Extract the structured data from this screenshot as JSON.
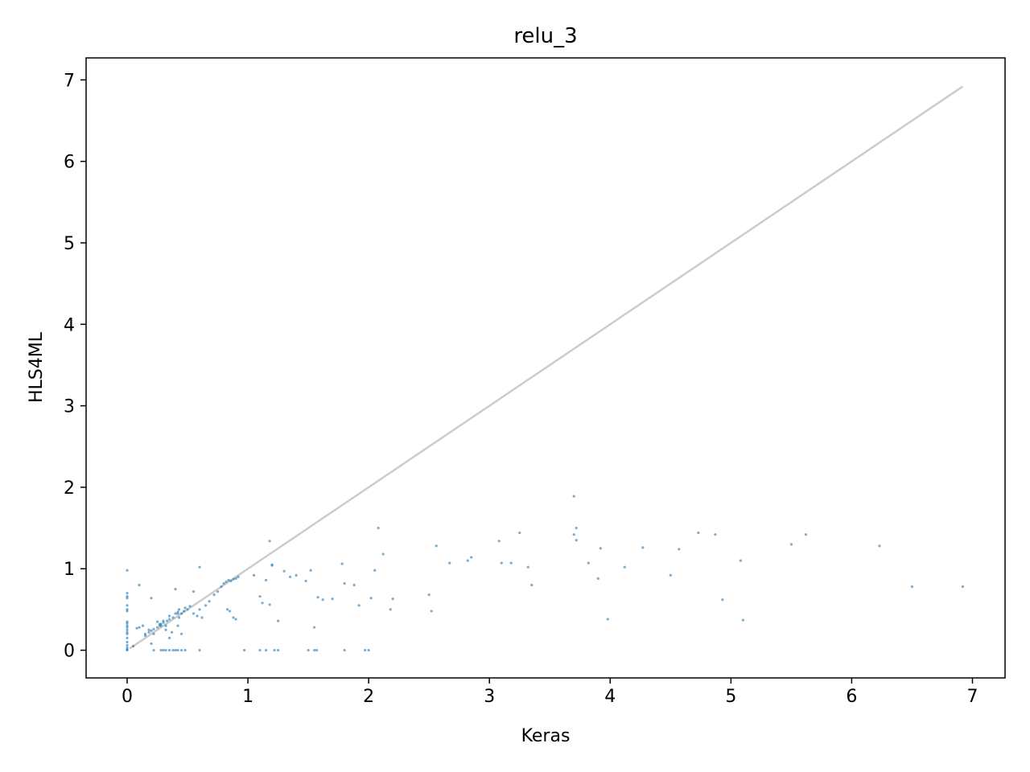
{
  "chart_data": {
    "type": "scatter",
    "title": "relu_3",
    "xlabel": "Keras",
    "ylabel": "HLS4ML",
    "xlim": [
      -0.34,
      7.27
    ],
    "ylim": [
      -0.34,
      7.27
    ],
    "xticks": [
      0,
      1,
      2,
      3,
      4,
      5,
      6,
      7
    ],
    "yticks": [
      0,
      1,
      2,
      3,
      4,
      5,
      6,
      7
    ],
    "grid": false,
    "colors": {
      "points": "#1f77b4",
      "reference_line": "#cccccc"
    },
    "reference_line": {
      "x": [
        0.02,
        6.92
      ],
      "y": [
        0.02,
        6.92
      ]
    },
    "series": [
      {
        "x": [
          0,
          0,
          0,
          0,
          0,
          0,
          0,
          0,
          0,
          0,
          0,
          0,
          0,
          0,
          0,
          0,
          0,
          0,
          0,
          0,
          0.05,
          0.08,
          0.1,
          0.13,
          0.15,
          0.18,
          0.2,
          0.22,
          0.25,
          0.27,
          0.28,
          0.3,
          0.32,
          0.33,
          0.35,
          0.38,
          0.4,
          0.42,
          0.43,
          0.45,
          0.47,
          0.48,
          0.5,
          0.52,
          0.55,
          0.58,
          0.6,
          0.62,
          0.65,
          0.68,
          0.72,
          0.75,
          0.78,
          0.8,
          0.82,
          0.84,
          0.86,
          0.88,
          0.9,
          0.92,
          0.1,
          0.15,
          0.18,
          0.2,
          0.22,
          0.25,
          0.27,
          0.28,
          0.3,
          0.32,
          0.35,
          0.37,
          0.4,
          0.42,
          0.43,
          0.45,
          0.6,
          0.2,
          0.35,
          0.42,
          0.55,
          0.83,
          0.85,
          0.88,
          0.9,
          1.05,
          1.1,
          1.12,
          1.15,
          1.18,
          1.2,
          1.25,
          1.3,
          1.35,
          1.4,
          1.48,
          1.52,
          1.55,
          1.58,
          1.62,
          1.7,
          1.78,
          1.8,
          1.88,
          1.92,
          2.02,
          2.05,
          2.08,
          2.12,
          2.18,
          2.2,
          2.5,
          2.52,
          2.56,
          2.67,
          2.82,
          2.85,
          3.08,
          3.1,
          3.18,
          3.25,
          3.32,
          3.35,
          3.7,
          3.7,
          3.72,
          3.72,
          3.82,
          3.9,
          3.92,
          3.98,
          4.12,
          4.27,
          4.5,
          4.57,
          4.73,
          4.87,
          4.93,
          5.08,
          5.1,
          5.5,
          5.62,
          6.23,
          6.5,
          6.92,
          0.22,
          0.28,
          0.38,
          0.42,
          0.48,
          0.6,
          0.97,
          1.1,
          1.15,
          1.22,
          1.25,
          1.55,
          1.57,
          1.8,
          1.97,
          2.0,
          0.3,
          0.32,
          0.35,
          0.4,
          0.45,
          1.18,
          1.2,
          1.5
        ],
        "y": [
          0.98,
          0.7,
          0.66,
          0.64,
          0.55,
          0.5,
          0.48,
          0.35,
          0.33,
          0.3,
          0.28,
          0.25,
          0.22,
          0.2,
          0.15,
          0.1,
          0.06,
          0.03,
          0.01,
          0.0,
          0.05,
          0.27,
          0.28,
          0.3,
          0.2,
          0.22,
          0.24,
          0.26,
          0.28,
          0.3,
          0.32,
          0.34,
          0.3,
          0.36,
          0.38,
          0.4,
          0.45,
          0.47,
          0.5,
          0.45,
          0.48,
          0.52,
          0.5,
          0.54,
          0.45,
          0.42,
          0.5,
          0.4,
          0.55,
          0.6,
          0.68,
          0.72,
          0.78,
          0.82,
          0.84,
          0.86,
          0.85,
          0.87,
          0.88,
          0.9,
          0.8,
          0.18,
          0.25,
          0.64,
          0.2,
          0.35,
          0.32,
          0.3,
          0.36,
          0.25,
          0.42,
          0.22,
          0.75,
          0.45,
          0.4,
          0.2,
          1.02,
          0.08,
          0.15,
          0.3,
          0.72,
          0.5,
          0.48,
          0.4,
          0.38,
          0.92,
          0.66,
          0.58,
          0.86,
          0.56,
          1.05,
          0.36,
          0.97,
          0.9,
          0.92,
          0.85,
          0.98,
          0.28,
          0.65,
          0.62,
          0.63,
          1.06,
          0.82,
          0.8,
          0.55,
          0.64,
          0.98,
          1.5,
          1.18,
          0.5,
          0.63,
          0.68,
          0.48,
          1.28,
          1.07,
          1.1,
          1.14,
          1.34,
          1.07,
          1.07,
          1.44,
          1.02,
          0.8,
          1.89,
          1.42,
          1.5,
          1.35,
          1.07,
          0.88,
          1.25,
          0.38,
          1.02,
          1.26,
          0.92,
          1.24,
          1.44,
          1.42,
          0.62,
          1.1,
          0.37,
          1.3,
          1.42,
          1.28,
          0.78,
          0.78,
          0.0,
          0.0,
          0.0,
          0.0,
          0.0,
          0.0,
          0.0,
          0.0,
          0.0,
          0.0,
          0.0,
          0.0,
          0.0,
          0.0,
          0.0,
          0.0,
          0.0,
          0.0,
          0.0,
          0.0,
          0.0,
          1.34,
          1.04,
          0.0
        ]
      }
    ]
  }
}
